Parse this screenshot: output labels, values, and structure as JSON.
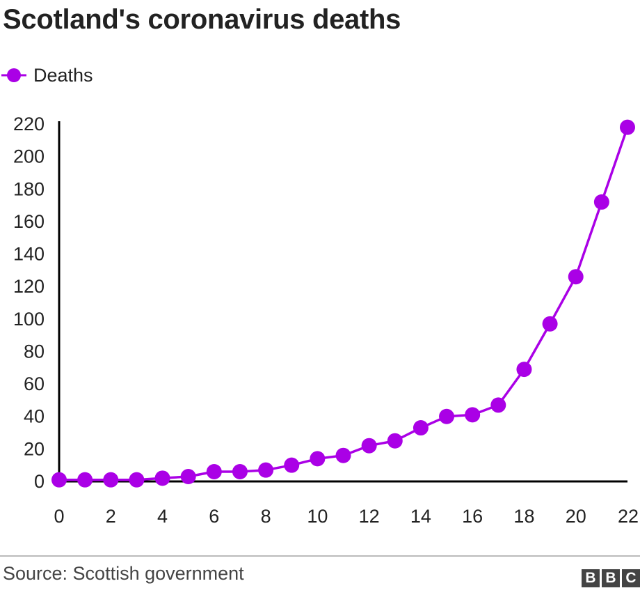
{
  "chart_data": {
    "type": "line",
    "title": "Scotland's coronavirus deaths",
    "xlabel": "",
    "ylabel": "",
    "x": [
      0,
      1,
      2,
      3,
      4,
      5,
      6,
      7,
      8,
      9,
      10,
      11,
      12,
      13,
      14,
      15,
      16,
      17,
      18,
      19,
      20,
      21,
      22
    ],
    "series": [
      {
        "name": "Deaths",
        "color": "#aa00e6",
        "values": [
          1,
          1,
          1,
          1,
          2,
          3,
          6,
          6,
          7,
          10,
          14,
          16,
          22,
          25,
          33,
          40,
          41,
          47,
          69,
          97,
          126,
          172,
          218
        ]
      }
    ],
    "xticks": [
      0,
      2,
      4,
      6,
      8,
      10,
      12,
      14,
      16,
      18,
      20,
      22
    ],
    "yticks": [
      0,
      20,
      40,
      60,
      80,
      100,
      120,
      140,
      160,
      180,
      200,
      220
    ],
    "xlim": [
      0,
      22
    ],
    "ylim": [
      0,
      220
    ],
    "grid": false,
    "legend_position": "top-left"
  },
  "footer": {
    "source": "Source: Scottish government",
    "logo_letters": [
      "B",
      "B",
      "C"
    ]
  }
}
